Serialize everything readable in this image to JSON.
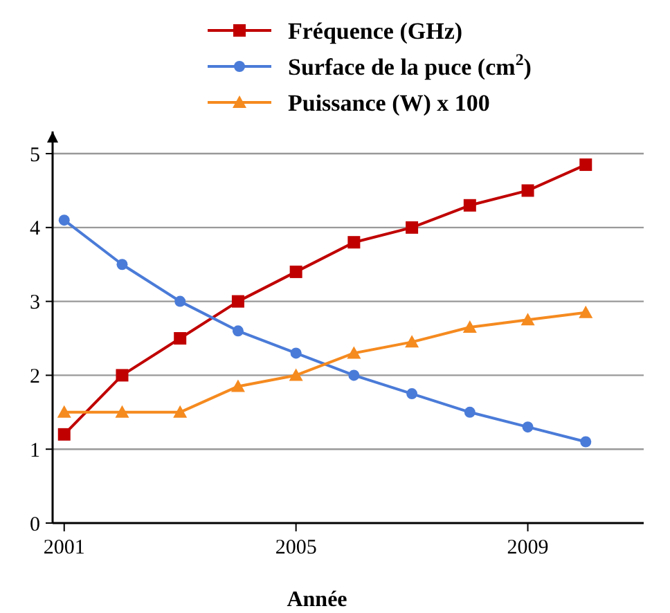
{
  "chart_data": {
    "type": "line",
    "xlabel": "Année",
    "x": [
      2001,
      2002,
      2003,
      2004,
      2005,
      2006,
      2007,
      2008,
      2009,
      2010
    ],
    "xlim": [
      2000.8,
      2011
    ],
    "xticks": [
      2001,
      2005,
      2009
    ],
    "ylim": [
      0,
      5.3
    ],
    "yticks": [
      0,
      1,
      2,
      3,
      4,
      5
    ],
    "grid": "y",
    "legend": "top",
    "line_style": "solid",
    "series": [
      {
        "name": "Fréquence (GHz)",
        "color": "#c00000",
        "marker": "square",
        "values": [
          1.2,
          2.0,
          2.5,
          3.0,
          3.4,
          3.8,
          4.0,
          4.3,
          4.5,
          4.85
        ]
      },
      {
        "name": "Surface de la puce (cm$^{2}$)",
        "color": "#4a7bd8",
        "marker": "circle",
        "values": [
          4.1,
          3.5,
          3.0,
          2.6,
          2.3,
          2.0,
          1.75,
          1.5,
          1.3,
          1.1
        ]
      },
      {
        "name": "Puissance (W) x 100",
        "color": "#f58a1f",
        "marker": "triangle",
        "values": [
          1.5,
          1.5,
          1.5,
          1.85,
          2.0,
          2.3,
          2.45,
          2.65,
          2.75,
          2.85
        ]
      }
    ]
  }
}
